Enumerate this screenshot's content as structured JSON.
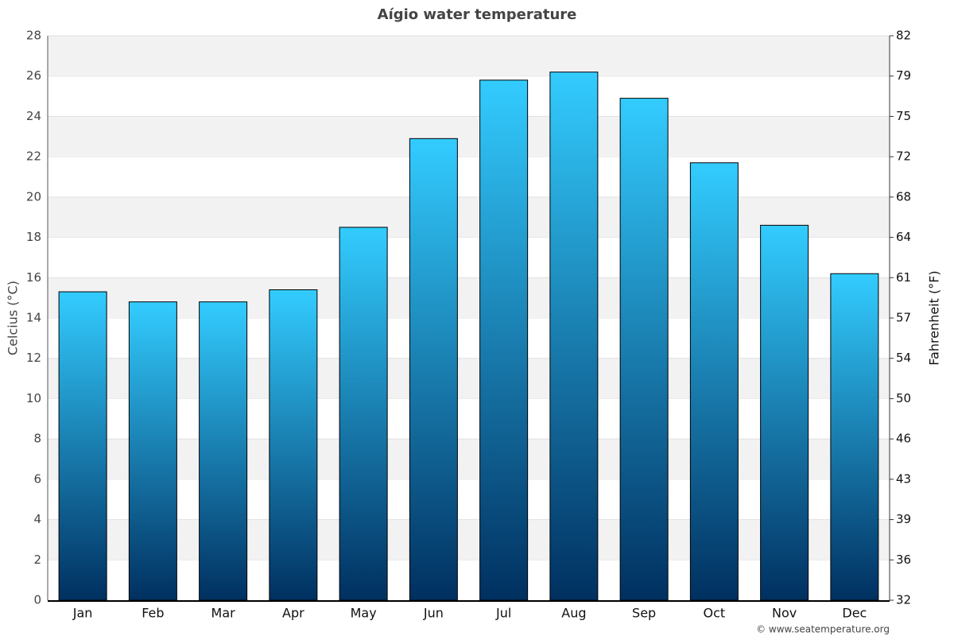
{
  "chart_data": {
    "type": "bar",
    "title": "Aígio water temperature",
    "y_label": "Celcius (°C)",
    "y2_label": "Fahrenheit (°F)",
    "categories": [
      "Jan",
      "Feb",
      "Mar",
      "Apr",
      "May",
      "Jun",
      "Jul",
      "Aug",
      "Sep",
      "Oct",
      "Nov",
      "Dec"
    ],
    "values": [
      15.3,
      14.8,
      14.8,
      15.4,
      18.5,
      22.9,
      25.8,
      26.2,
      24.9,
      21.7,
      18.6,
      16.2
    ],
    "color": "#1a8fd0",
    "ylim": [
      0,
      28
    ],
    "yticks": [
      0,
      2,
      4,
      6,
      8,
      10,
      12,
      14,
      16,
      18,
      20,
      22,
      24,
      26,
      28
    ],
    "y2lim": [
      32,
      82.4
    ],
    "y2ticks": [
      32,
      {
        "value": 35.6,
        "label": "36"
      },
      {
        "value": 39.2,
        "label": "39"
      },
      {
        "value": 42.8,
        "label": "43"
      },
      {
        "value": 46.4,
        "label": "46"
      },
      50,
      {
        "value": 53.6,
        "label": "54"
      },
      {
        "value": 57.2,
        "label": "57"
      },
      {
        "value": 60.8,
        "label": "61"
      },
      {
        "value": 64.4,
        "label": "64"
      },
      68,
      {
        "value": 71.6,
        "label": "72"
      },
      {
        "value": 75.2,
        "label": "75"
      },
      {
        "value": 78.8,
        "label": "79"
      },
      {
        "value": 82.4,
        "label": "82"
      }
    ],
    "grid": true,
    "credit": "© www.seatemperature.org"
  }
}
